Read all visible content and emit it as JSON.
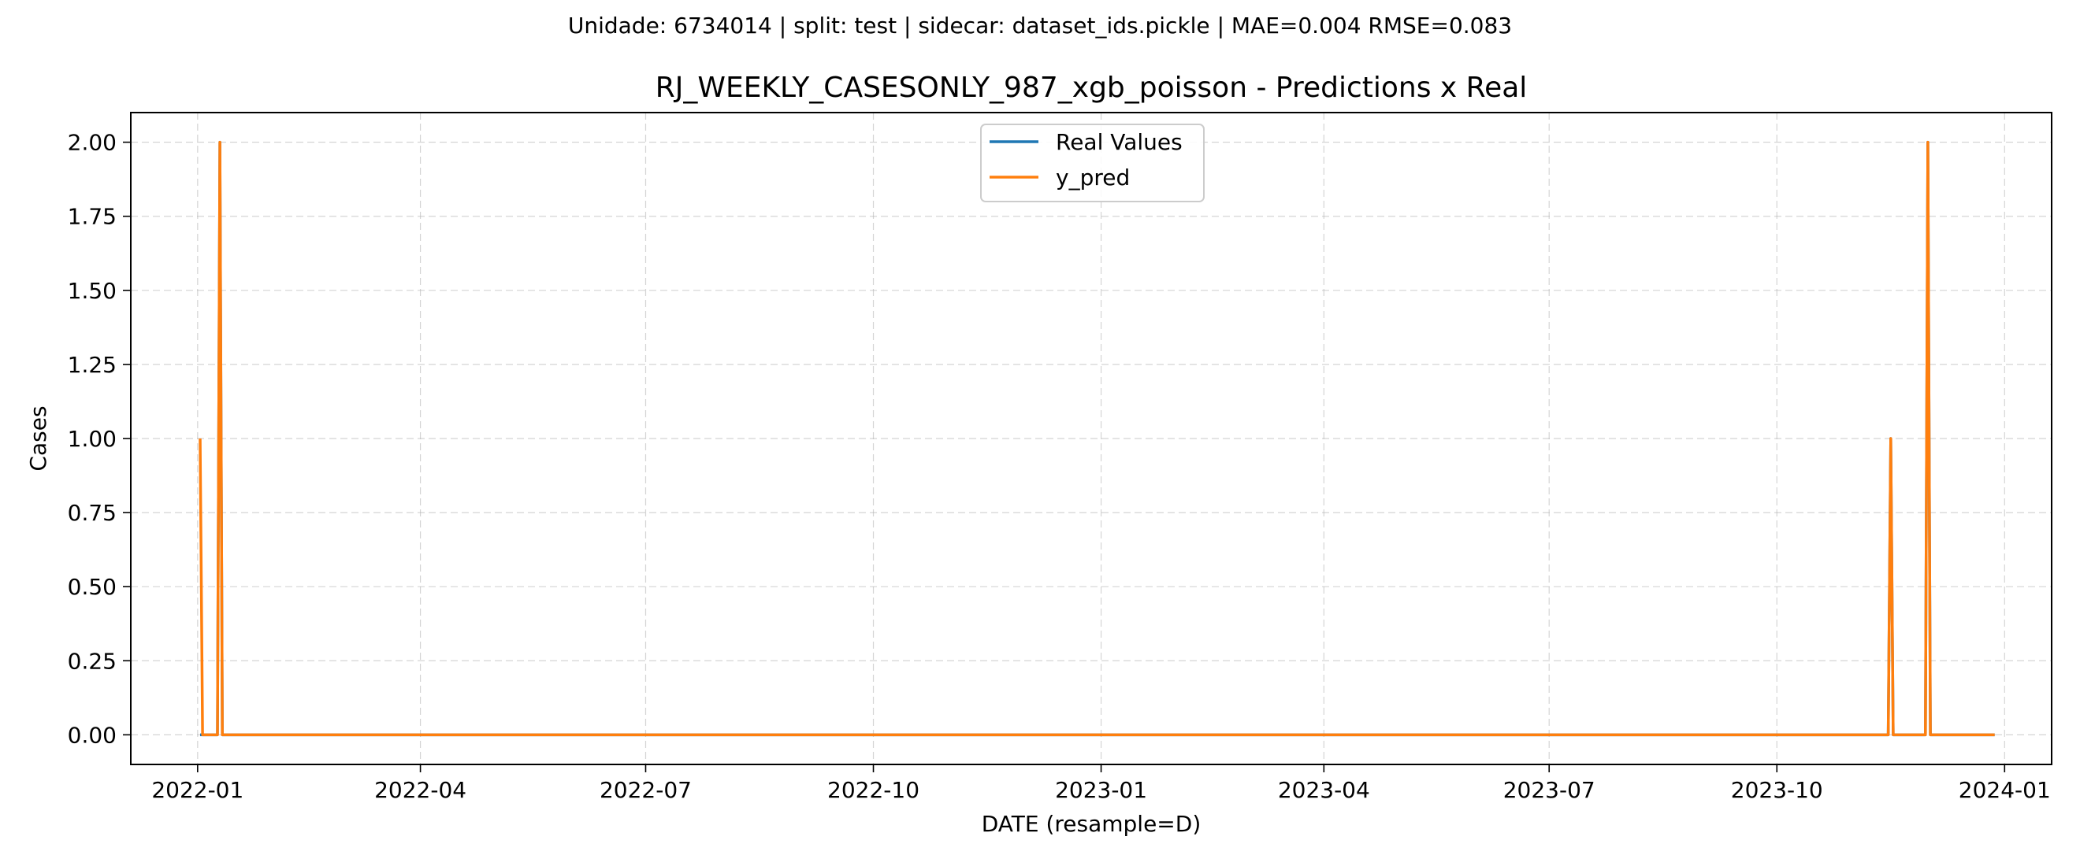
{
  "suptitle": "Unidade: 6734014 | split: test | sidecar: dataset_ids.pickle | MAE=0.004  RMSE=0.083",
  "chart_data": {
    "type": "line",
    "title": "RJ_WEEKLY_CASESONLY_987_xgb_poisson - Predictions x Real",
    "xlabel": "DATE (resample=D)",
    "ylabel": "Cases",
    "xlim": [
      "2021-12-05",
      "2024-01-20"
    ],
    "ylim": [
      -0.1,
      2.1
    ],
    "x_ticks": [
      "2022-01",
      "2022-04",
      "2022-07",
      "2022-10",
      "2023-01",
      "2023-04",
      "2023-07",
      "2023-10",
      "2024-01"
    ],
    "y_ticks": [
      "0.00",
      "0.25",
      "0.50",
      "0.75",
      "1.00",
      "1.25",
      "1.50",
      "1.75",
      "2.00"
    ],
    "grid": true,
    "legend_position": "top-center",
    "series": [
      {
        "name": "Real Values",
        "color": "#1f77b4",
        "points": [
          [
            "2022-01-02",
            0
          ],
          [
            "2022-01-09",
            0
          ],
          [
            "2022-01-10",
            2
          ],
          [
            "2022-01-11",
            0
          ],
          [
            "2023-11-15",
            0
          ],
          [
            "2023-11-16",
            1
          ],
          [
            "2023-11-17",
            0
          ],
          [
            "2023-11-30",
            0
          ],
          [
            "2023-12-01",
            2
          ],
          [
            "2023-12-02",
            0
          ],
          [
            "2023-12-28",
            0
          ]
        ]
      },
      {
        "name": "y_pred",
        "color": "#ff7f0e",
        "points": [
          [
            "2022-01-02",
            1
          ],
          [
            "2022-01-03",
            0
          ],
          [
            "2022-01-09",
            0
          ],
          [
            "2022-01-10",
            2
          ],
          [
            "2022-01-11",
            0
          ],
          [
            "2023-11-15",
            0
          ],
          [
            "2023-11-16",
            1
          ],
          [
            "2023-11-17",
            0
          ],
          [
            "2023-11-30",
            0
          ],
          [
            "2023-12-01",
            2
          ],
          [
            "2023-12-02",
            0
          ],
          [
            "2023-12-28",
            0
          ]
        ]
      }
    ]
  }
}
